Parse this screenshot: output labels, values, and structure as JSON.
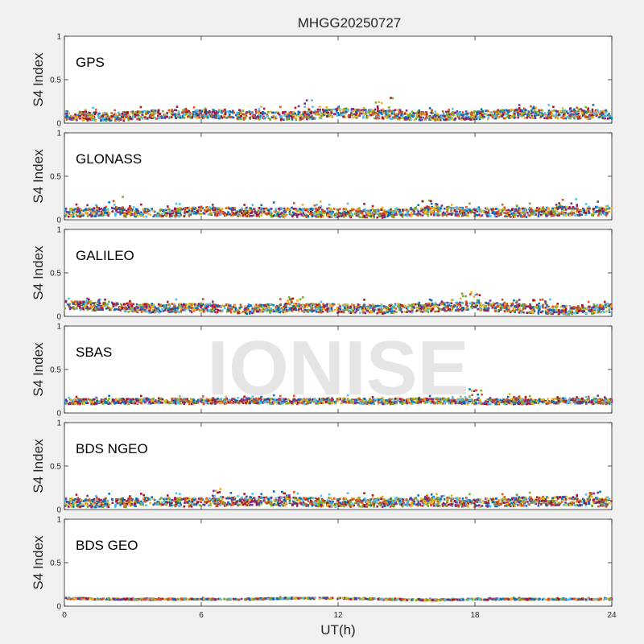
{
  "chart_data": {
    "type": "scatter",
    "title": "MHGG20250727",
    "watermark": "IONISE",
    "xlabel": "UT(h)",
    "ylabel": "S4 Index",
    "xlim": [
      0,
      24
    ],
    "ylim": [
      0,
      1
    ],
    "x_ticks": [
      "0",
      "6",
      "12",
      "18",
      "24"
    ],
    "y_ticks": [
      "0",
      "0.5",
      "1"
    ],
    "series_colors": [
      "#0072BD",
      "#D95319",
      "#EDB120",
      "#7E2F8E",
      "#77AC30",
      "#4DBEEE",
      "#A2142F"
    ],
    "panels": [
      {
        "label": "GPS",
        "baseline": [
          0.09,
          0.07,
          0.1,
          0.11,
          0.09,
          0.08,
          0.12,
          0.1,
          0.08,
          0.09,
          0.11,
          0.1,
          0.1
        ],
        "spread": 0.05,
        "peaks": [
          [
            10.6,
            0.27
          ],
          [
            14.0,
            0.31
          ],
          [
            20.4,
            0.21
          ],
          [
            22.6,
            0.21
          ]
        ]
      },
      {
        "label": "GLONASS",
        "baseline": [
          0.08,
          0.09,
          0.07,
          0.1,
          0.09,
          0.08,
          0.08,
          0.07,
          0.1,
          0.09,
          0.08,
          0.1,
          0.1
        ],
        "spread": 0.05,
        "peaks": [
          [
            2.6,
            0.27
          ],
          [
            10.8,
            0.22
          ],
          [
            16.0,
            0.24
          ],
          [
            22.0,
            0.25
          ]
        ]
      },
      {
        "label": "GALILEO",
        "baseline": [
          0.13,
          0.11,
          0.09,
          0.1,
          0.08,
          0.1,
          0.09,
          0.08,
          0.1,
          0.12,
          0.09,
          0.07,
          0.09
        ],
        "spread": 0.05,
        "peaks": [
          [
            1.4,
            0.2
          ],
          [
            10.2,
            0.22
          ],
          [
            17.8,
            0.28
          ],
          [
            21.0,
            0.2
          ]
        ]
      },
      {
        "label": "SBAS",
        "baseline": [
          0.13,
          0.13,
          0.14,
          0.13,
          0.14,
          0.13,
          0.14,
          0.13,
          0.14,
          0.13,
          0.13,
          0.14,
          0.13
        ],
        "spread": 0.03,
        "peaks": [
          [
            17.9,
            0.28
          ],
          [
            19.9,
            0.22
          ],
          [
            6.8,
            0.19
          ]
        ]
      },
      {
        "label": "BDS NGEO",
        "baseline": [
          0.08,
          0.07,
          0.09,
          0.08,
          0.1,
          0.09,
          0.08,
          0.08,
          0.09,
          0.08,
          0.09,
          0.1,
          0.08
        ],
        "spread": 0.05,
        "peaks": [
          [
            6.9,
            0.26
          ],
          [
            9.8,
            0.21
          ],
          [
            16.2,
            0.18
          ],
          [
            23.4,
            0.21
          ]
        ]
      },
      {
        "label": "BDS GEO",
        "baseline": [
          0.09,
          0.08,
          0.08,
          0.08,
          0.08,
          0.09,
          0.09,
          0.08,
          0.07,
          0.08,
          0.08,
          0.08,
          0.08
        ],
        "spread": 0.008,
        "peaks": []
      }
    ]
  }
}
